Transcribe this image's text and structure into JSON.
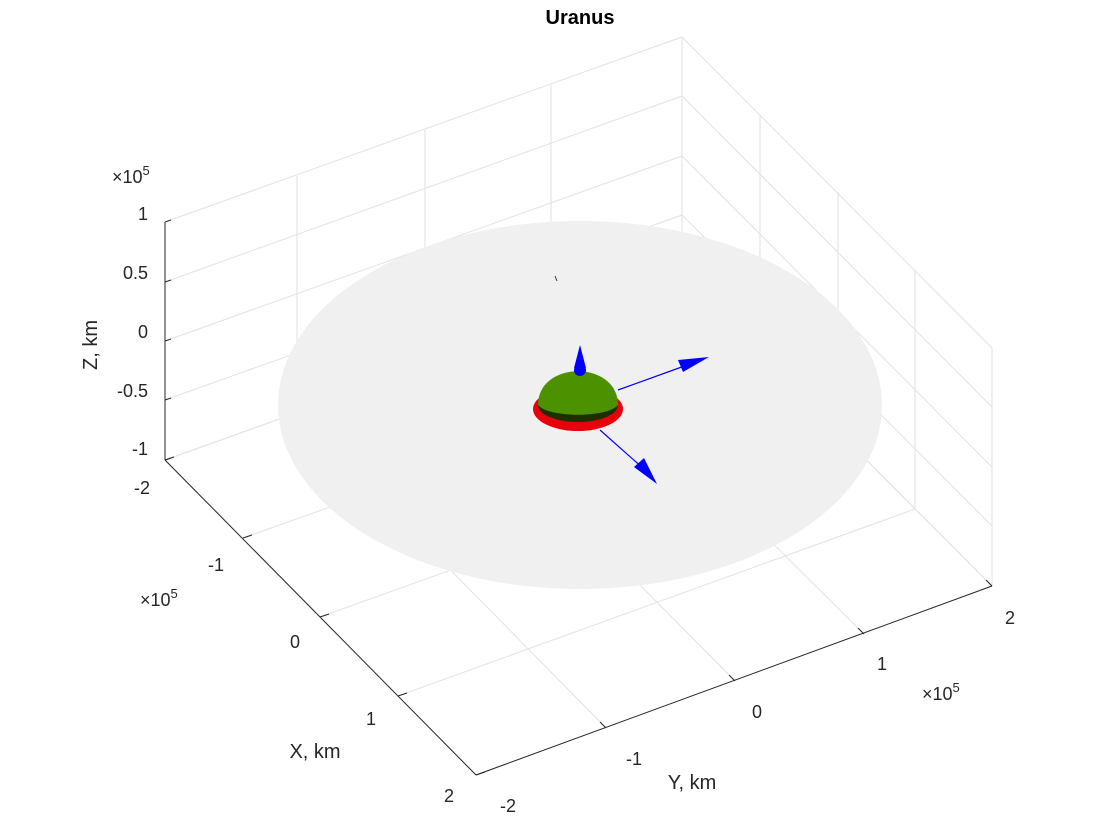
{
  "chart_data": {
    "type": "3d-surface",
    "title": "Uranus",
    "xlabel": "X, km",
    "ylabel": "Y, km",
    "zlabel": "Z, km",
    "exponent_label": "×10",
    "exponent_power": "5",
    "xlim": [
      -200000,
      200000
    ],
    "ylim": [
      -200000,
      200000
    ],
    "zlim": [
      -100000,
      100000
    ],
    "x_ticks": [
      "-2",
      "-1",
      "0",
      "1",
      "2"
    ],
    "y_ticks": [
      "-2",
      "-1",
      "0",
      "1",
      "2"
    ],
    "z_ticks": [
      "1",
      "0.5",
      "0",
      "-0.5",
      "-1"
    ],
    "grid": true,
    "colors": {
      "ring": "#f0f0f0",
      "planet": "#4c9100",
      "equator": "#e8000b",
      "vectors": "#0000ff",
      "axes": "#262626",
      "grid": "#e2e2e2"
    }
  }
}
